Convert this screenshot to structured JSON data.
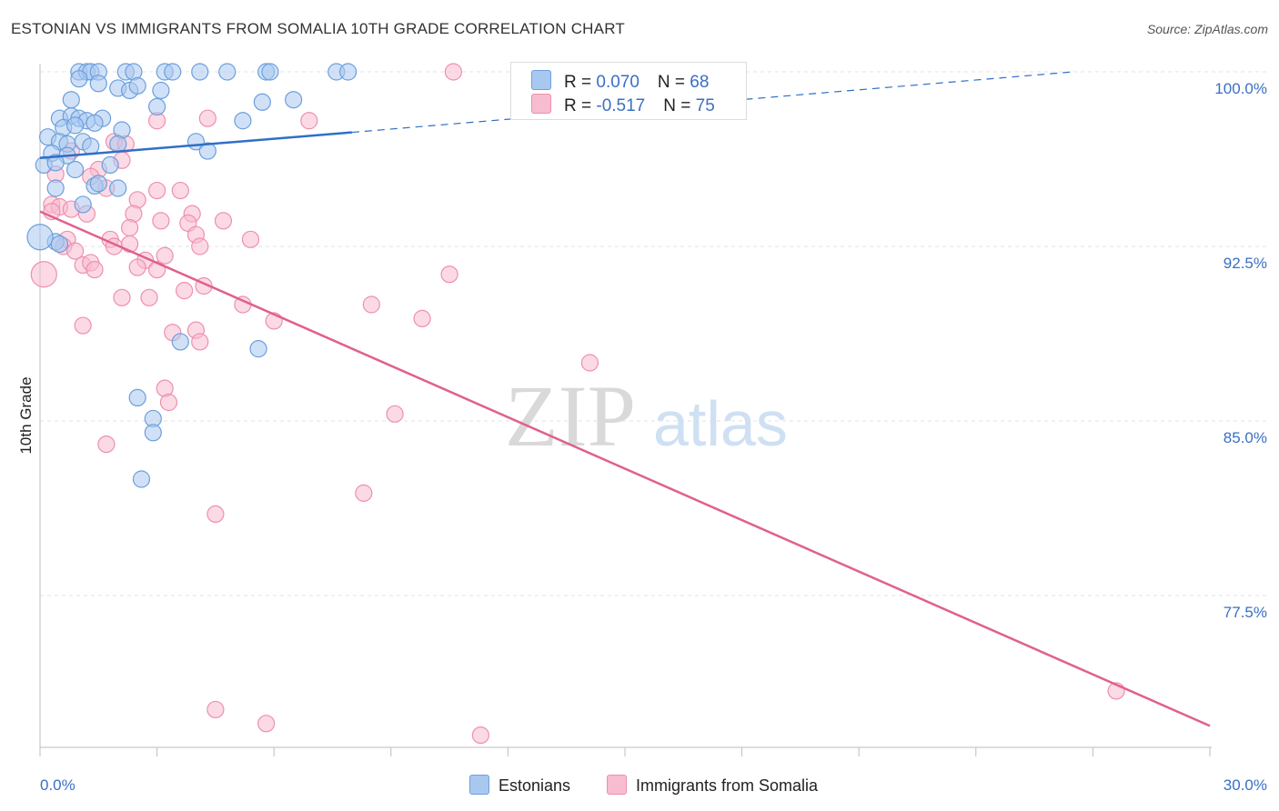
{
  "title": "ESTONIAN VS IMMIGRANTS FROM SOMALIA 10TH GRADE CORRELATION CHART",
  "source": "Source: ZipAtlas.com",
  "watermark": {
    "zip": "ZIP",
    "atlas": "atlas"
  },
  "legend": {
    "series1": {
      "r_label": "R = ",
      "r_value": "0.070",
      "n_label": "N = ",
      "n_value": "68"
    },
    "series2": {
      "r_label": "R = ",
      "r_value": "-0.517",
      "n_label": "N = ",
      "n_value": "75"
    }
  },
  "bottom_legend": {
    "series1": "Estonians",
    "series2": "Immigrants from Somalia"
  },
  "colors": {
    "blue_fill": "#a9c8f0",
    "blue_stroke": "#6b9fdc",
    "blue_line": "#2f6fc7",
    "pink_fill": "#f7bcd0",
    "pink_stroke": "#ee8fae",
    "pink_line": "#e0608e",
    "grid": "#e3e3e3",
    "tick_label": "#3a6fc4"
  },
  "chart_data": {
    "type": "scatter",
    "title": "ESTONIAN VS IMMIGRANTS FROM SOMALIA 10TH GRADE CORRELATION CHART",
    "xlabel": "",
    "ylabel": "10th Grade",
    "xlim": [
      0,
      30
    ],
    "ylim": [
      71,
      100.8
    ],
    "x_tick_labels": [
      "0.0%",
      "30.0%"
    ],
    "y_ticks": [
      77.5,
      85.0,
      92.5,
      100.0
    ],
    "y_tick_labels": [
      "77.5%",
      "85.0%",
      "92.5%",
      "100.0%"
    ],
    "series": [
      {
        "name": "Estonians",
        "r": 0.07,
        "n": 68,
        "trend": {
          "x0": 0.0,
          "y0": 96.3,
          "x_solid_end": 8.0,
          "y_solid_end": 97.4,
          "x1": 26.5,
          "y1": 100.0
        },
        "points": [
          [
            1.0,
            100
          ],
          [
            1.2,
            100
          ],
          [
            1.3,
            100
          ],
          [
            1.5,
            100
          ],
          [
            2.2,
            100
          ],
          [
            2.4,
            100
          ],
          [
            3.2,
            100
          ],
          [
            3.4,
            100
          ],
          [
            4.1,
            100
          ],
          [
            4.8,
            100
          ],
          [
            5.8,
            100
          ],
          [
            5.9,
            100
          ],
          [
            7.6,
            100
          ],
          [
            7.9,
            100
          ],
          [
            1.0,
            99.7
          ],
          [
            1.5,
            99.5
          ],
          [
            2.0,
            99.3
          ],
          [
            2.3,
            99.2
          ],
          [
            2.5,
            99.4
          ],
          [
            3.1,
            99.2
          ],
          [
            0.8,
            98.8
          ],
          [
            3.0,
            98.5
          ],
          [
            5.7,
            98.7
          ],
          [
            6.5,
            98.8
          ],
          [
            0.5,
            98.0
          ],
          [
            0.8,
            98.1
          ],
          [
            1.0,
            98.0
          ],
          [
            1.2,
            97.9
          ],
          [
            1.6,
            98.0
          ],
          [
            5.2,
            97.9
          ],
          [
            2.1,
            97.5
          ],
          [
            0.6,
            97.6
          ],
          [
            0.9,
            97.7
          ],
          [
            1.4,
            97.8
          ],
          [
            0.2,
            97.2
          ],
          [
            0.5,
            97.0
          ],
          [
            0.7,
            96.9
          ],
          [
            1.1,
            97.0
          ],
          [
            1.3,
            96.8
          ],
          [
            0.3,
            96.5
          ],
          [
            0.7,
            96.4
          ],
          [
            4.0,
            97.0
          ],
          [
            4.3,
            96.6
          ],
          [
            2.0,
            96.9
          ],
          [
            0.1,
            96.0
          ],
          [
            0.4,
            96.1
          ],
          [
            0.9,
            95.8
          ],
          [
            1.8,
            96.0
          ],
          [
            0.4,
            95.0
          ],
          [
            1.4,
            95.1
          ],
          [
            2.0,
            95.0
          ],
          [
            1.5,
            95.2
          ],
          [
            1.1,
            94.3
          ],
          [
            0.4,
            92.7
          ],
          [
            0.5,
            92.6
          ],
          [
            3.6,
            88.4
          ],
          [
            5.6,
            88.1
          ],
          [
            2.5,
            86.0
          ],
          [
            2.9,
            85.1
          ],
          [
            2.9,
            84.5
          ],
          [
            2.6,
            82.5
          ],
          [
            0.0,
            92.9
          ]
        ]
      },
      {
        "name": "Immigrants from Somalia",
        "r": -0.517,
        "n": 75,
        "trend": {
          "x0": 0.0,
          "y0": 94.0,
          "x1": 30.0,
          "y1": 71.9
        },
        "points": [
          [
            10.6,
            100
          ],
          [
            3.0,
            97.9
          ],
          [
            4.3,
            98.0
          ],
          [
            6.9,
            97.9
          ],
          [
            1.9,
            97.0
          ],
          [
            2.2,
            96.9
          ],
          [
            0.8,
            96.6
          ],
          [
            2.1,
            96.2
          ],
          [
            1.5,
            95.8
          ],
          [
            0.4,
            95.6
          ],
          [
            1.3,
            95.5
          ],
          [
            1.7,
            95.0
          ],
          [
            3.0,
            94.9
          ],
          [
            3.6,
            94.9
          ],
          [
            2.5,
            94.5
          ],
          [
            0.3,
            94.3
          ],
          [
            0.5,
            94.2
          ],
          [
            0.8,
            94.1
          ],
          [
            1.2,
            93.9
          ],
          [
            2.4,
            93.9
          ],
          [
            3.9,
            93.9
          ],
          [
            4.7,
            93.6
          ],
          [
            3.1,
            93.6
          ],
          [
            3.8,
            93.5
          ],
          [
            2.3,
            93.3
          ],
          [
            4.0,
            93.0
          ],
          [
            0.7,
            92.8
          ],
          [
            1.8,
            92.8
          ],
          [
            5.4,
            92.8
          ],
          [
            1.9,
            92.5
          ],
          [
            2.3,
            92.6
          ],
          [
            4.1,
            92.5
          ],
          [
            0.6,
            92.5
          ],
          [
            0.9,
            92.3
          ],
          [
            2.7,
            91.9
          ],
          [
            3.2,
            92.1
          ],
          [
            1.1,
            91.7
          ],
          [
            1.3,
            91.8
          ],
          [
            2.5,
            91.6
          ],
          [
            1.4,
            91.5
          ],
          [
            3.0,
            91.5
          ],
          [
            10.5,
            91.3
          ],
          [
            4.2,
            90.8
          ],
          [
            3.7,
            90.6
          ],
          [
            2.1,
            90.3
          ],
          [
            2.8,
            90.3
          ],
          [
            5.2,
            90.0
          ],
          [
            8.5,
            90.0
          ],
          [
            6.0,
            89.3
          ],
          [
            9.8,
            89.4
          ],
          [
            1.1,
            89.1
          ],
          [
            4.0,
            88.9
          ],
          [
            3.4,
            88.8
          ],
          [
            4.1,
            88.4
          ],
          [
            14.1,
            87.5
          ],
          [
            3.2,
            86.4
          ],
          [
            3.3,
            85.8
          ],
          [
            9.1,
            85.3
          ],
          [
            1.7,
            84.0
          ],
          [
            8.3,
            81.9
          ],
          [
            4.5,
            81.0
          ],
          [
            4.5,
            72.6
          ],
          [
            5.8,
            72.0
          ],
          [
            11.3,
            71.5
          ],
          [
            27.6,
            73.4
          ],
          [
            0.1,
            91.3
          ],
          [
            0.3,
            94.0
          ]
        ]
      }
    ]
  }
}
